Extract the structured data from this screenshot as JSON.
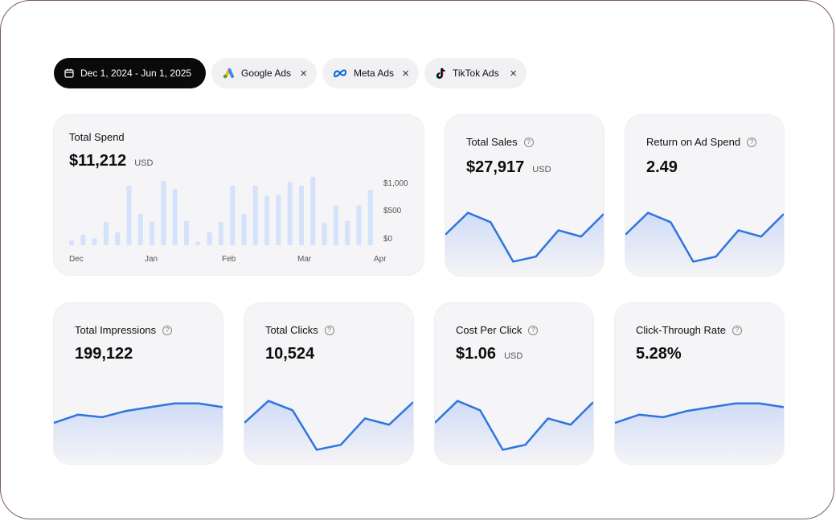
{
  "filters": {
    "date_range": "Dec 1, 2024 - Jun 1, 2025",
    "platforms": [
      {
        "label": "Google Ads",
        "icon": "google-ads-icon"
      },
      {
        "label": "Meta Ads",
        "icon": "meta-icon"
      },
      {
        "label": "TikTok Ads",
        "icon": "tiktok-icon"
      }
    ],
    "remove_glyph": "×"
  },
  "colors": {
    "accent": "#2f74e0",
    "bar": "#d4e2fb",
    "card": "#f5f4f6"
  },
  "spend": {
    "title": "Total Spend",
    "value": "$11,212",
    "unit": "USD",
    "chart_data": {
      "type": "bar",
      "y_ticks": [
        "$1,000",
        "$500",
        "$0"
      ],
      "ylim": [
        0,
        1100
      ],
      "x_labels": [
        "Dec",
        "Jan",
        "Feb",
        "Mar",
        "Apr"
      ],
      "values": [
        80,
        180,
        120,
        400,
        220,
        1020,
        540,
        400,
        1100,
        960,
        420,
        60,
        220,
        400,
        1020,
        540,
        1020,
        840,
        860,
        1080,
        1020,
        1170,
        380,
        680,
        420,
        680,
        940
      ]
    }
  },
  "sales": {
    "title": "Total Sales",
    "value": "$27,917",
    "unit": "USD"
  },
  "roas": {
    "title": "Return on Ad Spend",
    "value": "2.49",
    "unit": ""
  },
  "impressions": {
    "title": "Total Impressions",
    "value": "199,122",
    "unit": ""
  },
  "clicks": {
    "title": "Total Clicks",
    "value": "10,524",
    "unit": ""
  },
  "cpc": {
    "title": "Cost Per Click",
    "value": "$1.06",
    "unit": "USD"
  },
  "ctr": {
    "title": "Click-Through Rate",
    "value": "5.28%",
    "unit": ""
  },
  "sparklines": {
    "volatile": [
      0.45,
      0.8,
      0.65,
      0.02,
      0.1,
      0.52,
      0.42,
      0.78
    ],
    "smooth": [
      0.45,
      0.58,
      0.54,
      0.64,
      0.7,
      0.76,
      0.76,
      0.7
    ]
  }
}
